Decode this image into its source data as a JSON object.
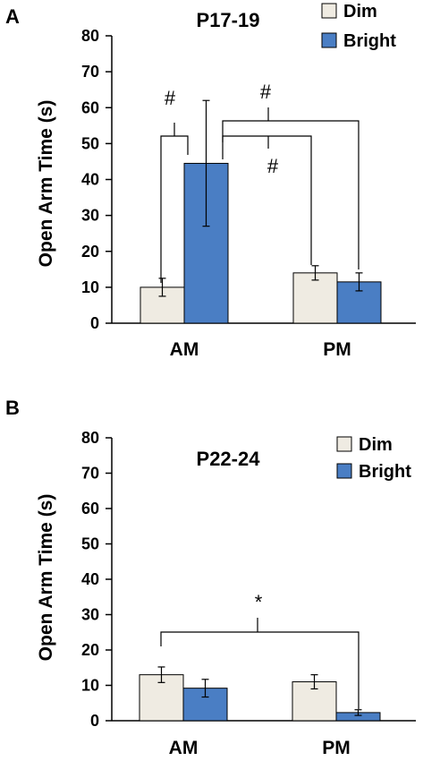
{
  "chart_data": [
    {
      "panel": "A",
      "type": "bar",
      "title": "P17-19",
      "ylabel": "Open Arm Time (s)",
      "xlabel": "",
      "categories": [
        "AM",
        "PM"
      ],
      "ylim": [
        0,
        80
      ],
      "yticks": [
        0,
        10,
        20,
        30,
        40,
        50,
        60,
        70,
        80
      ],
      "legend_position": "top-right",
      "series": [
        {
          "name": "Dim",
          "color": "#efebe2",
          "values": [
            10,
            14
          ],
          "errors": [
            2.5,
            2
          ]
        },
        {
          "name": "Bright",
          "color": "#4a7ec4",
          "values": [
            44.5,
            11.5
          ],
          "errors": [
            17.5,
            2.5
          ]
        }
      ],
      "annotations": [
        "#",
        "#",
        "#"
      ]
    },
    {
      "panel": "B",
      "type": "bar",
      "title": "P22-24",
      "ylabel": "Open Arm Time (s)",
      "xlabel": "",
      "categories": [
        "AM",
        "PM"
      ],
      "ylim": [
        0,
        80
      ],
      "yticks": [
        0,
        10,
        20,
        30,
        40,
        50,
        60,
        70,
        80
      ],
      "legend_position": "top-right",
      "series": [
        {
          "name": "Dim",
          "color": "#efebe2",
          "values": [
            13,
            11
          ],
          "errors": [
            2.2,
            2
          ]
        },
        {
          "name": "Bright",
          "color": "#4a7ec4",
          "values": [
            9.2,
            2.3
          ],
          "errors": [
            2.5,
            0.8
          ]
        }
      ],
      "annotations": [
        "*"
      ]
    }
  ]
}
